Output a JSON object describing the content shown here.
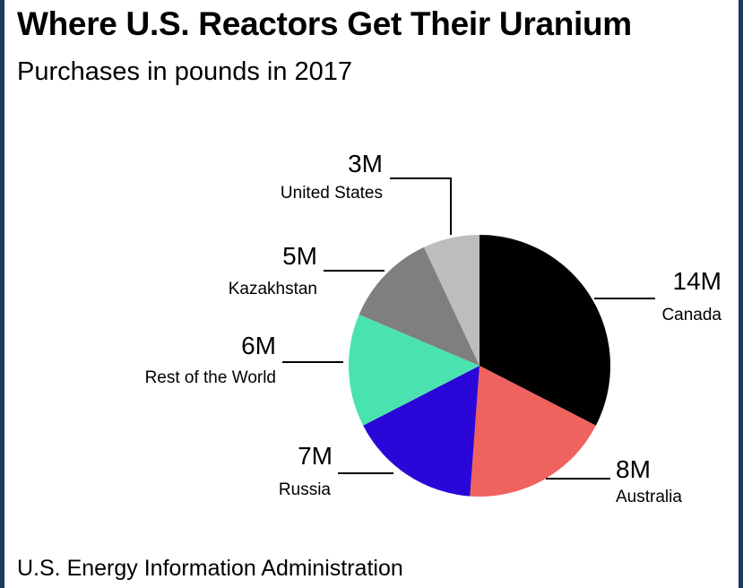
{
  "title": "Where U.S. Reactors Get Their Uranium",
  "subtitle": "Purchases in pounds in 2017",
  "source": "U.S. Energy Information Administration",
  "chart_data": {
    "type": "pie",
    "unit": "M pounds",
    "slices": [
      {
        "label": "Canada",
        "value": 14,
        "value_label": "14M",
        "color": "#000000"
      },
      {
        "label": "Australia",
        "value": 8,
        "value_label": "8M",
        "color": "#f0625e"
      },
      {
        "label": "Russia",
        "value": 7,
        "value_label": "7M",
        "color": "#2a07d8"
      },
      {
        "label": "Rest of the World",
        "value": 6,
        "value_label": "6M",
        "color": "#4ae3b0"
      },
      {
        "label": "Kazakhstan",
        "value": 5,
        "value_label": "5M",
        "color": "#7f7f7f"
      },
      {
        "label": "United States",
        "value": 3,
        "value_label": "3M",
        "color": "#bdbdbd"
      }
    ]
  }
}
